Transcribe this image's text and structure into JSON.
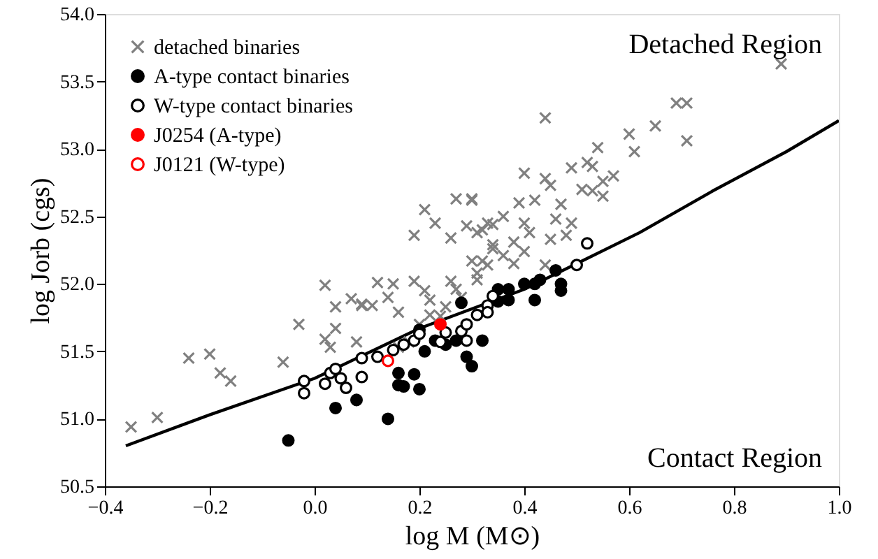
{
  "chart_data": {
    "type": "scatter",
    "xlabel": "log M (M⊙)",
    "ylabel": "log Jorb (cgs)",
    "annotations": [
      "Detached Region",
      "Contact Region"
    ],
    "xlim": [
      -0.4,
      1.0
    ],
    "xticks": [
      {
        "value": -0.4,
        "label": "−0.4"
      },
      {
        "value": -0.2,
        "label": "−0.2"
      },
      {
        "value": 0.0,
        "label": "0.0"
      },
      {
        "value": 0.2,
        "label": "0.2"
      },
      {
        "value": 0.4,
        "label": "0.4"
      },
      {
        "value": 0.6,
        "label": "0.6"
      },
      {
        "value": 0.8,
        "label": "0.8"
      },
      {
        "value": 1.0,
        "label": "1.0"
      }
    ],
    "ylim": [
      50.5,
      54.0
    ],
    "yticks": [
      {
        "value": 50.5,
        "label": "50.5"
      },
      {
        "value": 51.0,
        "label": "51.0"
      },
      {
        "value": 51.5,
        "label": "51.5"
      },
      {
        "value": 52.0,
        "label": "52.0"
      },
      {
        "value": 52.5,
        "label": "52.5"
      },
      {
        "value": 53.0,
        "label": "53.0"
      },
      {
        "value": 53.5,
        "label": "53.5"
      },
      {
        "value": 54.0,
        "label": "54.0"
      }
    ],
    "grid": false,
    "legend": "top left",
    "series": [
      {
        "type": "line",
        "color": "#000000",
        "line_style": "solid",
        "x": [
          -0.36,
          -0.2,
          0.0,
          0.2,
          0.4,
          0.5,
          0.62,
          0.76,
          0.9,
          1.0
        ],
        "values": [
          50.8,
          51.03,
          51.3,
          51.67,
          51.96,
          52.15,
          52.38,
          52.69,
          52.98,
          53.21
        ]
      },
      {
        "name": "detached binaries",
        "color": "#808080",
        "marker": "cross",
        "x": [
          -0.35,
          -0.3,
          -0.24,
          -0.2,
          -0.18,
          -0.16,
          -0.06,
          -0.03,
          0.02,
          0.04,
          0.04,
          0.02,
          0.03,
          0.07,
          0.09,
          0.08,
          0.09,
          0.11,
          0.12,
          0.15,
          0.14,
          0.16,
          0.18,
          0.16,
          0.19,
          0.19,
          0.21,
          0.23,
          0.21,
          0.22,
          0.2,
          0.22,
          0.25,
          0.24,
          0.26,
          0.27,
          0.28,
          0.26,
          0.27,
          0.3,
          0.29,
          0.32,
          0.34,
          0.3,
          0.31,
          0.32,
          0.34,
          0.3,
          0.33,
          0.31,
          0.34,
          0.33,
          0.31,
          0.36,
          0.38,
          0.36,
          0.39,
          0.4,
          0.41,
          0.4,
          0.38,
          0.4,
          0.42,
          0.45,
          0.44,
          0.44,
          0.45,
          0.44,
          0.47,
          0.46,
          0.49,
          0.48,
          0.49,
          0.51,
          0.52,
          0.53,
          0.53,
          0.55,
          0.55,
          0.54,
          0.57,
          0.6,
          0.61,
          0.65,
          0.69,
          0.71,
          0.71,
          0.89
        ],
        "values": [
          50.94,
          51.01,
          51.45,
          51.48,
          51.34,
          51.28,
          51.42,
          51.7,
          51.99,
          51.83,
          51.67,
          51.59,
          51.53,
          51.89,
          51.85,
          51.57,
          51.84,
          51.84,
          52.01,
          52.0,
          51.9,
          51.79,
          51.57,
          51.53,
          52.02,
          52.36,
          52.55,
          52.45,
          51.95,
          51.88,
          51.7,
          51.77,
          51.83,
          51.76,
          52.02,
          51.96,
          51.9,
          52.34,
          52.63,
          52.63,
          52.43,
          52.4,
          52.44,
          52.17,
          52.03,
          52.17,
          52.26,
          52.62,
          52.45,
          52.38,
          52.29,
          52.14,
          52.08,
          52.21,
          52.31,
          52.5,
          52.6,
          52.45,
          52.38,
          52.24,
          52.15,
          52.82,
          52.62,
          52.33,
          52.14,
          52.78,
          52.73,
          53.23,
          52.59,
          52.48,
          52.45,
          52.36,
          52.86,
          52.7,
          52.9,
          52.87,
          52.69,
          52.76,
          52.65,
          53.01,
          52.8,
          53.11,
          52.98,
          53.17,
          53.34,
          53.34,
          53.06,
          53.63
        ]
      },
      {
        "name": "A-type contact binaries",
        "color": "#000000",
        "marker": "circle",
        "x": [
          -0.05,
          0.04,
          0.08,
          0.14,
          0.16,
          0.16,
          0.17,
          0.19,
          0.2,
          0.21,
          0.2,
          0.23,
          0.25,
          0.27,
          0.28,
          0.29,
          0.3,
          0.32,
          0.35,
          0.35,
          0.37,
          0.37,
          0.42,
          0.4,
          0.42,
          0.43,
          0.46,
          0.47,
          0.47
        ],
        "values": [
          50.84,
          51.08,
          51.14,
          51.0,
          51.34,
          51.25,
          51.24,
          51.33,
          51.22,
          51.5,
          51.66,
          51.58,
          51.55,
          51.58,
          51.86,
          51.46,
          51.39,
          51.58,
          51.96,
          51.87,
          51.96,
          51.88,
          51.88,
          52.0,
          52.0,
          52.03,
          52.1,
          52.0,
          51.95
        ]
      },
      {
        "name": "W-type contact binaries",
        "color": "#000000",
        "marker": "open circle",
        "x": [
          -0.02,
          -0.02,
          0.02,
          0.03,
          0.04,
          0.05,
          0.06,
          0.09,
          0.09,
          0.12,
          0.15,
          0.17,
          0.19,
          0.2,
          0.24,
          0.25,
          0.28,
          0.29,
          0.29,
          0.31,
          0.33,
          0.34,
          0.33,
          0.5,
          0.52
        ],
        "values": [
          51.28,
          51.19,
          51.26,
          51.34,
          51.37,
          51.3,
          51.23,
          51.45,
          51.31,
          51.46,
          51.51,
          51.55,
          51.58,
          51.63,
          51.57,
          51.64,
          51.65,
          51.7,
          51.58,
          51.77,
          51.84,
          51.91,
          51.79,
          52.14,
          52.3
        ]
      },
      {
        "name": "J0254 (A-type)",
        "color": "#ff0000",
        "marker": "circle",
        "x": [
          0.24
        ],
        "values": [
          51.7
        ]
      },
      {
        "name": "J0121 (W-type)",
        "color": "#ff0000",
        "marker": "open circle",
        "x": [
          0.14
        ],
        "values": [
          51.43
        ]
      }
    ]
  }
}
